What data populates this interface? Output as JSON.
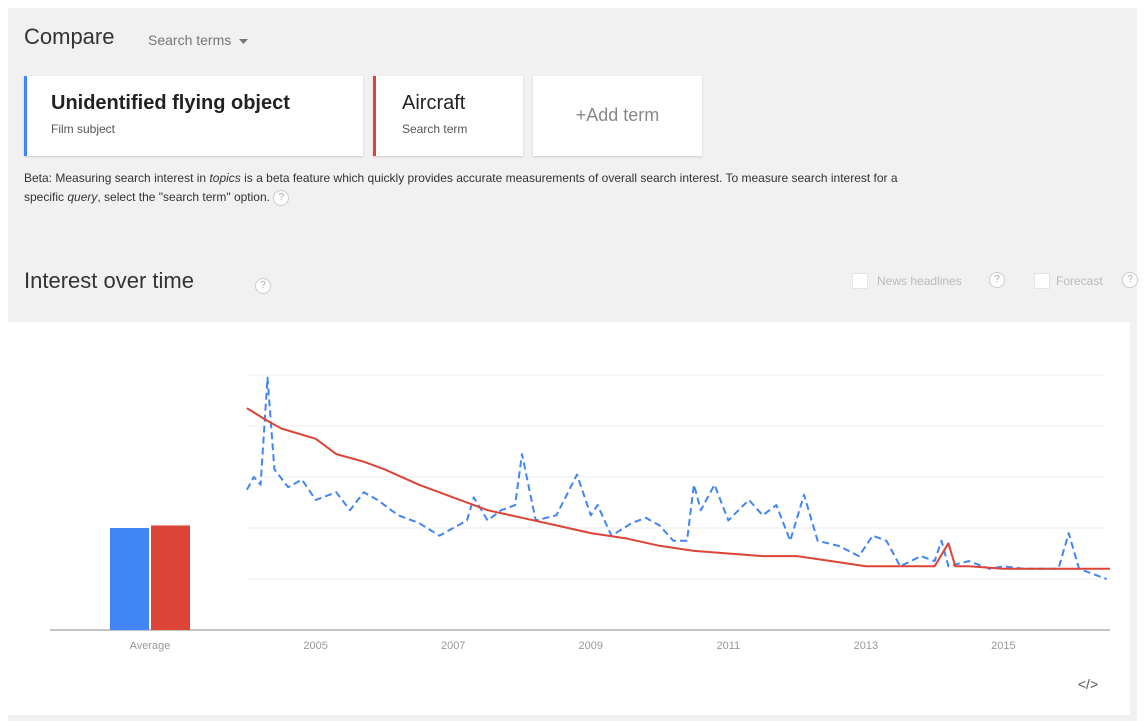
{
  "header": {
    "title": "Compare",
    "dropdown": "Search terms"
  },
  "terms": [
    {
      "title": "Unidentified flying object",
      "subtitle": "Film subject"
    },
    {
      "title": "Aircraft",
      "subtitle": "Search term"
    }
  ],
  "add_term": "+Add term",
  "beta_note": [
    "Beta: Measuring search interest in ",
    "topics",
    " is a beta feature which quickly provides accurate measurements of overall search interest. To measure search interest for a specific ",
    "query",
    ", select the \"search term\" option."
  ],
  "help_icon": "?",
  "section_title": "Interest over time",
  "options": [
    "News headlines",
    "Forecast"
  ],
  "embed_icon": "</>",
  "chart_data": {
    "type": "line",
    "average_label": "Average",
    "xlim": [
      2003.9,
      2016.55
    ],
    "xticks": [
      2005,
      2007,
      2009,
      2011,
      2013,
      2015
    ],
    "ylim": [
      0,
      100
    ],
    "yticks": [
      0,
      20,
      40,
      60,
      80,
      100
    ],
    "grid": true,
    "series": [
      {
        "name": "Unidentified flying object",
        "color": "#4285f4",
        "dashed": true,
        "average": 40,
        "x": [
          2004.0,
          2004.1,
          2004.2,
          2004.3,
          2004.4,
          2004.6,
          2004.8,
          2005.0,
          2005.3,
          2005.5,
          2005.7,
          2005.9,
          2006.0,
          2006.2,
          2006.5,
          2006.8,
          2007.0,
          2007.2,
          2007.3,
          2007.5,
          2007.7,
          2007.9,
          2008.0,
          2008.2,
          2008.5,
          2008.8,
          2009.0,
          2009.1,
          2009.3,
          2009.6,
          2009.8,
          2010.0,
          2010.2,
          2010.4,
          2010.5,
          2010.6,
          2010.8,
          2011.0,
          2011.3,
          2011.5,
          2011.7,
          2011.9,
          2012.1,
          2012.3,
          2012.6,
          2012.9,
          2013.1,
          2013.3,
          2013.5,
          2013.8,
          2014.0,
          2014.1,
          2014.2,
          2014.5,
          2014.8,
          2015.0,
          2015.3,
          2015.6,
          2015.8,
          2015.95,
          2016.1,
          2016.3,
          2016.5
        ],
        "values": [
          55,
          60,
          57,
          99,
          63,
          56,
          59,
          51,
          54,
          47,
          54,
          51,
          49,
          45,
          42,
          37,
          40,
          43,
          52,
          43,
          47,
          49,
          69,
          43,
          45,
          61,
          45,
          49,
          37,
          42,
          44,
          41,
          35,
          35,
          57,
          47,
          57,
          43,
          51,
          45,
          49,
          35,
          53,
          35,
          33,
          29,
          37,
          35,
          25,
          29,
          27,
          35,
          25,
          27,
          24,
          25,
          24,
          24,
          24,
          38,
          24,
          22,
          20
        ]
      },
      {
        "name": "Aircraft",
        "color": "#db4437",
        "dashed": false,
        "average": 41,
        "x": [
          2004.0,
          2004.3,
          2004.5,
          2005.0,
          2005.3,
          2005.7,
          2006.0,
          2006.5,
          2007.0,
          2007.5,
          2008.0,
          2008.5,
          2009.0,
          2009.5,
          2010.0,
          2010.5,
          2011.0,
          2011.5,
          2012.0,
          2012.5,
          2013.0,
          2013.5,
          2014.0,
          2014.2,
          2014.3,
          2014.5,
          2015.0,
          2015.5,
          2016.0,
          2016.55
        ],
        "values": [
          87,
          82,
          79,
          75,
          69,
          66,
          63,
          57,
          52,
          47,
          44,
          41,
          38,
          36,
          33,
          31,
          30,
          29,
          29,
          27,
          25,
          25,
          25,
          34,
          25,
          25,
          24,
          24,
          24,
          24
        ]
      }
    ]
  }
}
